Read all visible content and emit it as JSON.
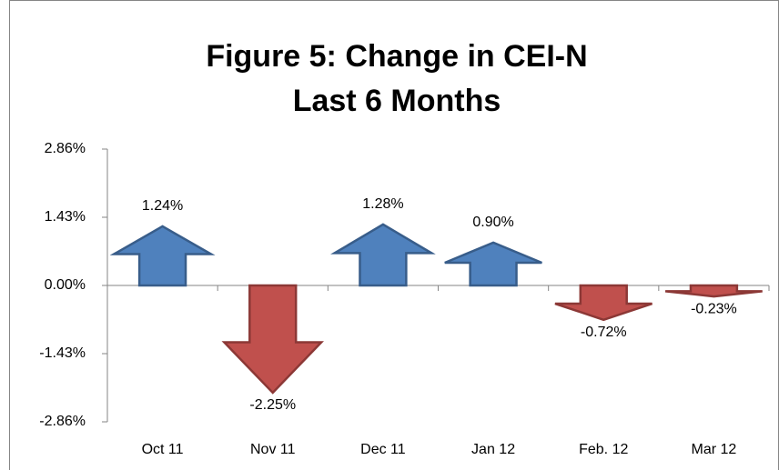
{
  "chart_data": {
    "type": "arrow",
    "title": "Figure 5: Change in CEI-N",
    "subtitle": "Last 6 Months",
    "categories": [
      "Oct 11",
      "Nov 11",
      "Dec 11",
      "Jan 12",
      "Feb. 12",
      "Mar 12"
    ],
    "values": [
      1.24,
      -2.25,
      1.28,
      0.9,
      -0.72,
      -0.23
    ],
    "value_labels": [
      "1.24%",
      "-2.25%",
      "1.28%",
      "0.90%",
      "-0.72%",
      "-0.23%"
    ],
    "up_color": "#4f81bd",
    "down_color": "#c0504d",
    "ylim": [
      -2.86,
      2.86
    ],
    "yticks": [
      {
        "value": -2.86,
        "label": "-2.86%"
      },
      {
        "value": -1.43,
        "label": "-1.43%"
      },
      {
        "value": 0,
        "label": "0.00%"
      },
      {
        "value": 1.43,
        "label": "1.43%"
      },
      {
        "value": 2.86,
        "label": "2.86%"
      }
    ]
  }
}
